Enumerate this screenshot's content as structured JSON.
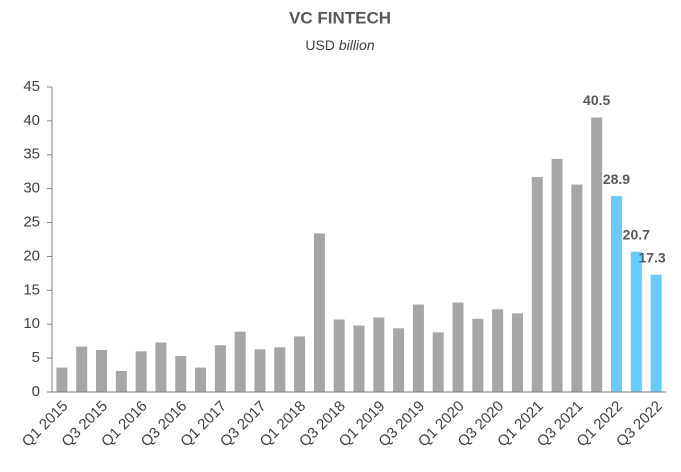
{
  "chart_data": {
    "type": "bar",
    "title": "VC FINTECH",
    "subtitle": [
      "USD",
      "billion"
    ],
    "categories": [
      "Q1 2015",
      null,
      "Q3 2015",
      null,
      "Q1 2016",
      null,
      "Q3 2016",
      null,
      "Q1 2017",
      null,
      "Q3 2017",
      null,
      "Q1 2018",
      null,
      "Q3 2018",
      null,
      "Q1 2019",
      null,
      "Q3 2019",
      null,
      "Q1 2020",
      null,
      "Q3 2020",
      null,
      "Q1 2021",
      null,
      "Q3 2021",
      null,
      "Q1 2022",
      null,
      "Q3 2022"
    ],
    "values": [
      3.6,
      6.7,
      6.2,
      3.1,
      6.0,
      7.3,
      5.3,
      3.6,
      6.9,
      8.9,
      6.3,
      6.6,
      8.2,
      23.4,
      10.7,
      9.8,
      11.0,
      9.4,
      12.9,
      8.8,
      13.2,
      10.8,
      12.2,
      11.6,
      31.7,
      34.4,
      30.6,
      40.5,
      28.9,
      20.7,
      17.3
    ],
    "value_labels": [
      null,
      null,
      null,
      null,
      null,
      null,
      null,
      null,
      null,
      null,
      null,
      null,
      null,
      null,
      null,
      null,
      null,
      null,
      null,
      null,
      null,
      null,
      null,
      null,
      null,
      null,
      null,
      "40.5",
      "28.9",
      "20.7",
      "17.3"
    ],
    "colors": [
      "#a6a6a6",
      "#a6a6a6",
      "#a6a6a6",
      "#a6a6a6",
      "#a6a6a6",
      "#a6a6a6",
      "#a6a6a6",
      "#a6a6a6",
      "#a6a6a6",
      "#a6a6a6",
      "#a6a6a6",
      "#a6a6a6",
      "#a6a6a6",
      "#a6a6a6",
      "#a6a6a6",
      "#a6a6a6",
      "#a6a6a6",
      "#a6a6a6",
      "#a6a6a6",
      "#a6a6a6",
      "#a6a6a6",
      "#a6a6a6",
      "#a6a6a6",
      "#a6a6a6",
      "#a6a6a6",
      "#a6a6a6",
      "#a6a6a6",
      "#a6a6a6",
      "#66ccff",
      "#66ccff",
      "#66ccff"
    ],
    "ylim": [
      0,
      45
    ],
    "yticks": [
      0,
      5,
      10,
      15,
      20,
      25,
      30,
      35,
      40,
      45
    ],
    "grid": false
  }
}
